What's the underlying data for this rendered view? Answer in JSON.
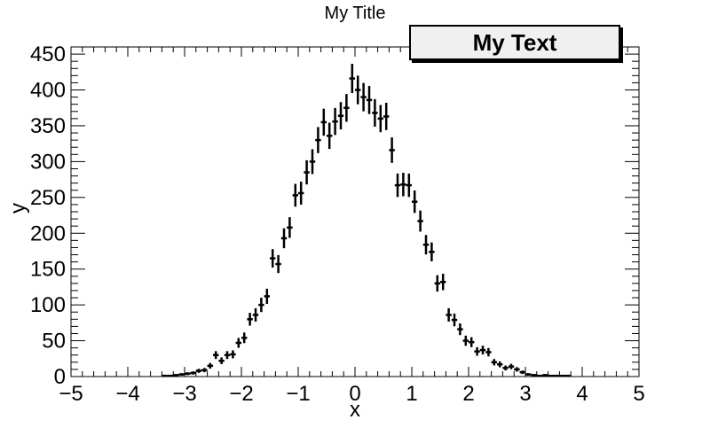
{
  "chart_data": {
    "type": "scatter",
    "title": "My Title",
    "annotation": "My Text",
    "xlabel": "x",
    "ylabel": "y",
    "xlim": [
      -5,
      5
    ],
    "ylim": [
      0,
      460
    ],
    "xticks": [
      "−5",
      "−4",
      "−3",
      "−2",
      "−1",
      "0",
      "1",
      "2",
      "3",
      "4",
      "5"
    ],
    "yticks": [
      "0",
      "50",
      "100",
      "150",
      "200",
      "250",
      "300",
      "350",
      "400",
      "450"
    ],
    "bin_width": 0.1,
    "grid": false,
    "error_bars": "sqrt(N)",
    "x": [
      -3.35,
      -3.25,
      -3.15,
      -3.05,
      -2.95,
      -2.85,
      -2.75,
      -2.65,
      -2.55,
      -2.45,
      -2.35,
      -2.25,
      -2.15,
      -2.05,
      -1.95,
      -1.85,
      -1.75,
      -1.65,
      -1.55,
      -1.45,
      -1.35,
      -1.25,
      -1.15,
      -1.05,
      -0.95,
      -0.85,
      -0.75,
      -0.65,
      -0.55,
      -0.45,
      -0.35,
      -0.25,
      -0.15,
      -0.05,
      0.05,
      0.15,
      0.25,
      0.35,
      0.45,
      0.55,
      0.65,
      0.75,
      0.85,
      0.95,
      1.05,
      1.15,
      1.25,
      1.35,
      1.45,
      1.55,
      1.65,
      1.75,
      1.85,
      1.95,
      2.05,
      2.15,
      2.25,
      2.35,
      2.45,
      2.55,
      2.65,
      2.75,
      2.85,
      2.95,
      3.05,
      3.15,
      3.25,
      3.35,
      3.45,
      3.55,
      3.65,
      3.75
    ],
    "y": [
      1,
      1,
      2,
      3,
      4,
      5,
      8,
      9,
      15,
      30,
      22,
      30,
      31,
      47,
      54,
      80,
      86,
      100,
      112,
      165,
      157,
      193,
      208,
      253,
      256,
      285,
      300,
      330,
      355,
      336,
      356,
      364,
      375,
      416,
      400,
      390,
      386,
      368,
      360,
      363,
      316,
      267,
      268,
      267,
      244,
      217,
      184,
      174,
      130,
      132,
      86,
      79,
      66,
      50,
      48,
      35,
      37,
      34,
      20,
      17,
      12,
      14,
      10,
      6,
      3,
      2,
      1,
      2,
      1,
      1,
      1,
      1
    ]
  }
}
